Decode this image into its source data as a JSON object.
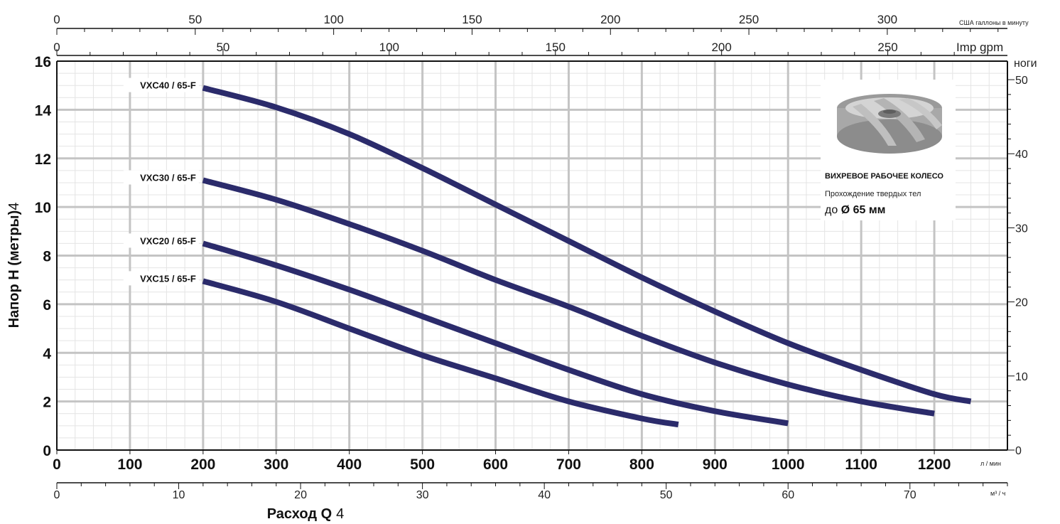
{
  "chart_data": {
    "type": "line",
    "series_color": "#2b2b6b",
    "grid": true,
    "x_main": {
      "label": "Расход Q",
      "label_suffix": "4",
      "unit": "л / мин",
      "range": [
        0,
        1300
      ],
      "ticks": [
        0,
        100,
        200,
        300,
        400,
        500,
        600,
        700,
        800,
        900,
        1000,
        1100,
        1200
      ]
    },
    "x_m3h": {
      "unit": "м³ / ч",
      "range": [
        0,
        78
      ],
      "ticks": [
        0,
        10,
        20,
        30,
        40,
        50,
        60,
        70
      ]
    },
    "x_imp_gpm": {
      "unit": "Imp gpm",
      "range": [
        0,
        286
      ],
      "ticks": [
        0,
        50,
        100,
        150,
        200,
        250
      ]
    },
    "x_us_gpm": {
      "unit": "США галлоны в минуту",
      "range": [
        0,
        343.4
      ],
      "ticks": [
        0,
        50,
        100,
        150,
        200,
        250,
        300
      ]
    },
    "y_left": {
      "label": "Напор H (метры)",
      "label_suffix": "4",
      "range": [
        0,
        16
      ],
      "ticks": [
        0,
        2,
        4,
        6,
        8,
        10,
        12,
        14,
        16
      ]
    },
    "y_right": {
      "label": "ноги",
      "range": [
        0,
        52.5
      ],
      "ticks": [
        0,
        10,
        20,
        30,
        40,
        50
      ]
    },
    "series": [
      {
        "name": "VXC40 / 65-F",
        "points": [
          [
            200,
            14.9
          ],
          [
            300,
            14.1
          ],
          [
            400,
            13.0
          ],
          [
            500,
            11.6
          ],
          [
            600,
            10.1
          ],
          [
            700,
            8.6
          ],
          [
            800,
            7.1
          ],
          [
            900,
            5.7
          ],
          [
            1000,
            4.4
          ],
          [
            1100,
            3.3
          ],
          [
            1200,
            2.3
          ],
          [
            1250,
            2.0
          ]
        ]
      },
      {
        "name": "VXC30 / 65-F",
        "points": [
          [
            200,
            11.1
          ],
          [
            300,
            10.3
          ],
          [
            400,
            9.3
          ],
          [
            500,
            8.2
          ],
          [
            600,
            7.0
          ],
          [
            700,
            5.9
          ],
          [
            800,
            4.7
          ],
          [
            900,
            3.6
          ],
          [
            1000,
            2.7
          ],
          [
            1100,
            2.0
          ],
          [
            1200,
            1.5
          ]
        ]
      },
      {
        "name": "VXC20 / 65-F",
        "points": [
          [
            200,
            8.5
          ],
          [
            300,
            7.6
          ],
          [
            400,
            6.6
          ],
          [
            500,
            5.5
          ],
          [
            600,
            4.4
          ],
          [
            700,
            3.3
          ],
          [
            800,
            2.3
          ],
          [
            900,
            1.6
          ],
          [
            1000,
            1.1
          ]
        ]
      },
      {
        "name": "VXC15 / 65-F",
        "points": [
          [
            200,
            6.95
          ],
          [
            300,
            6.1
          ],
          [
            400,
            5.0
          ],
          [
            500,
            3.9
          ],
          [
            600,
            2.95
          ],
          [
            700,
            2.0
          ],
          [
            800,
            1.3
          ],
          [
            850,
            1.05
          ]
        ]
      }
    ],
    "info_box": {
      "title": "ВИХРЕВОЕ РАБОЧЕЕ КОЛЕСО",
      "line1": "Прохождение твердых тел",
      "line2_prefix": "до ",
      "line2_bold": "Ø 65 мм"
    }
  }
}
